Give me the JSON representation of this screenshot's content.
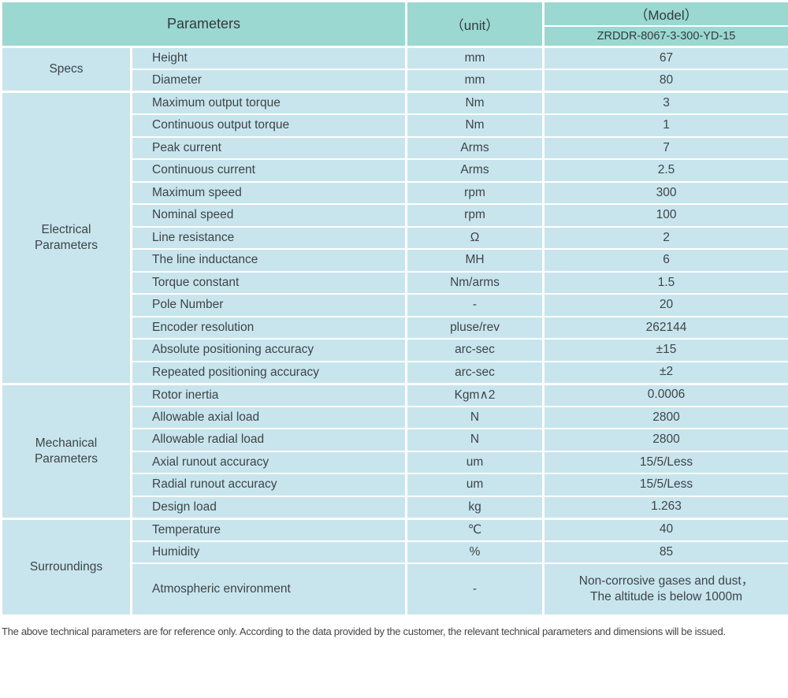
{
  "colors": {
    "header_bg": "#9ad8d1",
    "row_bg": "#c8e5ed",
    "border": "#ffffff",
    "text": "#3e4447"
  },
  "table": {
    "header": {
      "parameters": "Parameters",
      "unit": "（unit）",
      "model": "（Model）",
      "model_number": "ZRDDR-8067-3-300-YD-15"
    },
    "sections": [
      {
        "category": "Specs",
        "rows": [
          {
            "param": "Height",
            "unit": "mm",
            "value": "67"
          },
          {
            "param": "Diameter",
            "unit": "mm",
            "value": "80"
          }
        ]
      },
      {
        "category": "Electrical\nParameters",
        "rows": [
          {
            "param": "Maximum output torque",
            "unit": "Nm",
            "value": "3"
          },
          {
            "param": "Continuous output torque",
            "unit": "Nm",
            "value": "1"
          },
          {
            "param": "Peak current",
            "unit": "Arms",
            "value": "7"
          },
          {
            "param": "Continuous current",
            "unit": "Arms",
            "value": "2.5"
          },
          {
            "param": "Maximum speed",
            "unit": "rpm",
            "value": "300"
          },
          {
            "param": "Nominal speed",
            "unit": "rpm",
            "value": "100"
          },
          {
            "param": "Line resistance",
            "unit": "Ω",
            "value": "2"
          },
          {
            "param": "The line inductance",
            "unit": "MH",
            "value": "6"
          },
          {
            "param": "Torque constant",
            "unit": "Nm/arms",
            "value": "1.5"
          },
          {
            "param": "Pole Number",
            "unit": "-",
            "value": "20"
          },
          {
            "param": "Encoder resolution",
            "unit": "pluse/rev",
            "value": "262144"
          },
          {
            "param": "Absolute positioning accuracy",
            "unit": "arc-sec",
            "value": "±15"
          },
          {
            "param": "Repeated positioning accuracy",
            "unit": "arc-sec",
            "value": "±2"
          }
        ]
      },
      {
        "category": "Mechanical\nParameters",
        "rows": [
          {
            "param": "Rotor inertia",
            "unit": "Kgm∧2",
            "value": "0.0006"
          },
          {
            "param": "Allowable axial load",
            "unit": "N",
            "value": "2800"
          },
          {
            "param": "Allowable radial load",
            "unit": "N",
            "value": "2800"
          },
          {
            "param": "Axial runout accuracy",
            "unit": "um",
            "value": "15/5/Less"
          },
          {
            "param": "Radial runout accuracy",
            "unit": "um",
            "value": "15/5/Less"
          },
          {
            "param": "Design load",
            "unit": "kg",
            "value": "1.263"
          }
        ]
      },
      {
        "category": "Surroundings",
        "rows": [
          {
            "param": "Temperature",
            "unit": "℃",
            "value": "40"
          },
          {
            "param": "Humidity",
            "unit": "%",
            "value": "85"
          },
          {
            "param": "Atmospheric environment",
            "unit": "-",
            "value": "Non-corrosive gases and dust，\nThe altitude is below 1000m"
          }
        ]
      }
    ],
    "footnote": "The above technical parameters are for reference only. According to the data provided by the customer, the relevant technical parameters and dimensions will be issued."
  }
}
